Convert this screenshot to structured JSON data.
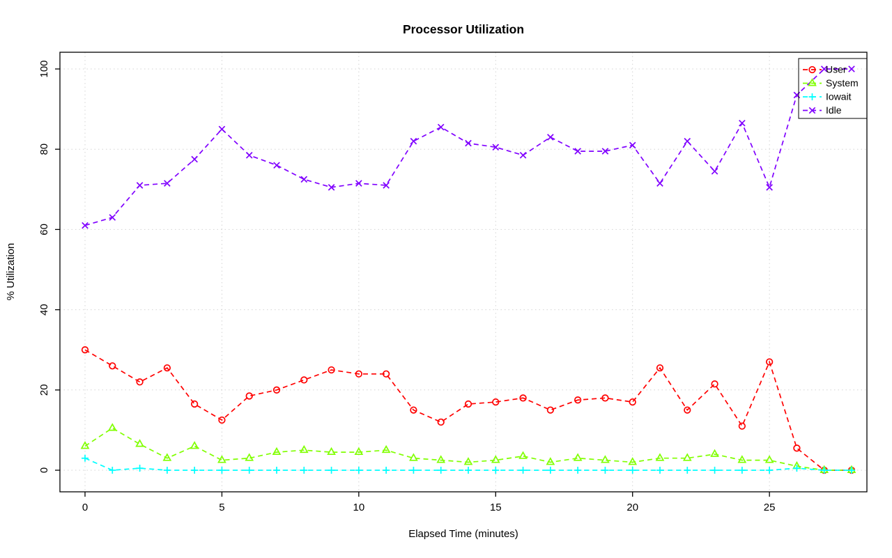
{
  "chart_data": {
    "type": "line",
    "title": "Processor Utilization",
    "xlabel": "Elapsed Time (minutes)",
    "ylabel": "% Utilization",
    "x": [
      0,
      1,
      2,
      3,
      4,
      5,
      6,
      7,
      8,
      9,
      10,
      11,
      12,
      13,
      14,
      15,
      16,
      17,
      18,
      19,
      20,
      21,
      22,
      23,
      24,
      25,
      26,
      27,
      28
    ],
    "xlim": [
      0,
      28
    ],
    "ylim": [
      0,
      100
    ],
    "x_ticks": [
      0,
      5,
      10,
      15,
      20,
      25
    ],
    "y_ticks": [
      0,
      20,
      40,
      60,
      80,
      100
    ],
    "grid": true,
    "grid_color": "#d3d3d3",
    "line_style": "dashed",
    "legend_position": "top-right",
    "series": [
      {
        "name": "User",
        "color": "#FF0000",
        "marker": "circle",
        "values": [
          30,
          26,
          22,
          25.5,
          16.5,
          12.5,
          18.5,
          20,
          22.5,
          25,
          24,
          24,
          15,
          12,
          16.5,
          17,
          18,
          15,
          17.5,
          18,
          17,
          25.5,
          15,
          21.5,
          11,
          27,
          5.5,
          0,
          0
        ]
      },
      {
        "name": "System",
        "color": "#80FF00",
        "marker": "triangle",
        "values": [
          6,
          10.5,
          6.5,
          3,
          6,
          2.5,
          3,
          4.5,
          5,
          4.5,
          4.5,
          5,
          3,
          2.5,
          2,
          2.5,
          3.5,
          2,
          3,
          2.5,
          2,
          3,
          3,
          4,
          2.5,
          2.5,
          1,
          0,
          0
        ]
      },
      {
        "name": "Iowait",
        "color": "#00FFFF",
        "marker": "plus",
        "values": [
          3,
          0,
          0.5,
          0,
          0,
          0,
          0,
          0,
          0,
          0,
          0,
          0,
          0,
          0,
          0,
          0,
          0,
          0,
          0,
          0,
          0,
          0,
          0,
          0,
          0,
          0,
          0.5,
          0,
          0
        ]
      },
      {
        "name": "Idle",
        "color": "#8000FF",
        "marker": "x",
        "values": [
          61,
          63,
          71,
          71.5,
          77.5,
          85,
          78.5,
          76,
          72.5,
          70.5,
          71.5,
          71,
          82,
          85.5,
          81.5,
          80.5,
          78.5,
          83,
          79.5,
          79.5,
          81,
          71.5,
          82,
          74.5,
          86.5,
          70.5,
          93.5,
          100,
          100
        ]
      }
    ]
  }
}
